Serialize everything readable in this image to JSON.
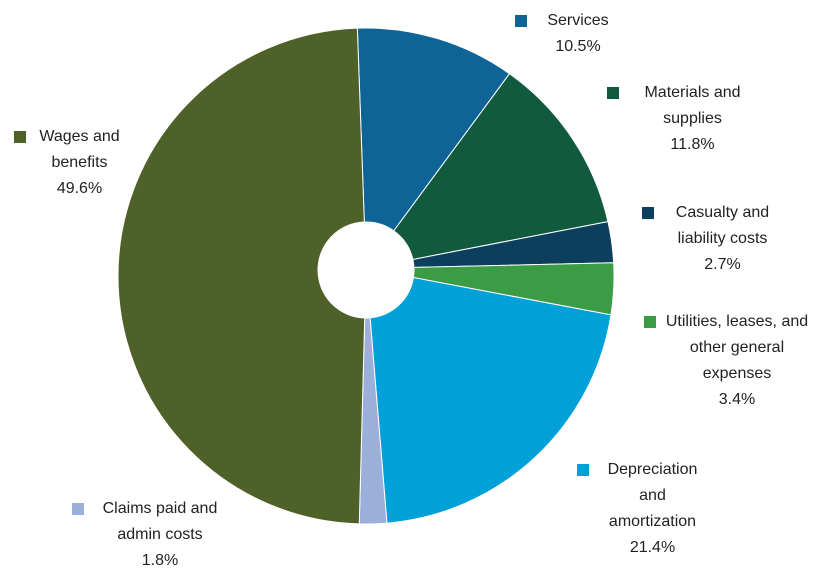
{
  "chart_data": {
    "type": "pie",
    "categories": [
      "Services",
      "Materials and supplies",
      "Casualty and liability costs",
      "Utilities, leases, and other general expenses",
      "Depreciation and amortization",
      "Claims paid and admin costs",
      "Wages and benefits"
    ],
    "values": [
      10.5,
      11.8,
      2.7,
      3.4,
      21.4,
      1.8,
      49.6
    ],
    "value_labels": [
      "10.5%",
      "11.8%",
      "2.7%",
      "3.4%",
      "21.4%",
      "1.8%",
      "49.6%"
    ],
    "colors": [
      "#0e6496",
      "#125a3e",
      "#0c3e5e",
      "#3b9c45",
      "#00a0d8",
      "#9aafda",
      "#4d6128"
    ]
  }
}
